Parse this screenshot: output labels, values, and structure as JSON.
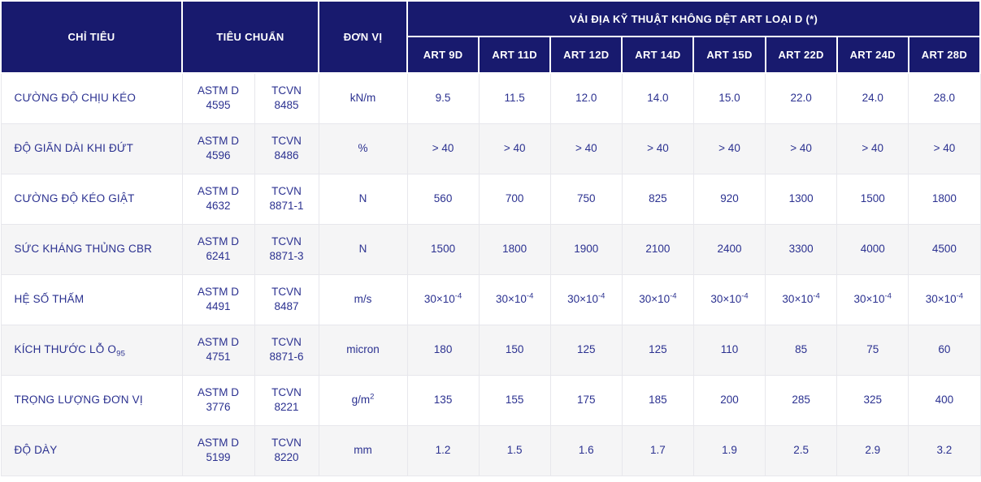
{
  "theme": {
    "header_bg": "#181a6e",
    "header_text": "#ffffff",
    "cell_text": "#2b3190",
    "stripe_bg": "#f5f5f6",
    "row_bg": "#ffffff",
    "border": "#e7e7ec",
    "page_bg": "#ffffff"
  },
  "table": {
    "header": {
      "col_chi_tieu": "CHỈ TIÊU",
      "col_tieu_chuan": "TIÊU CHUẨN",
      "col_don_vi": "ĐƠN VỊ",
      "group_title": "VẢI ĐỊA KỸ THUẬT KHÔNG DỆT ART LOẠI D (*)",
      "product_columns": [
        "ART 9D",
        "ART 11D",
        "ART 12D",
        "ART 14D",
        "ART 15D",
        "ART 22D",
        "ART 24D",
        "ART 28D"
      ]
    },
    "rows": [
      {
        "label": "CƯỜNG ĐỘ CHỊU KÉO",
        "astm": "ASTM D\n4595",
        "tcvn": "TCVN\n8485",
        "unit": "kN/m",
        "values": [
          "9.5",
          "11.5",
          "12.0",
          "14.0",
          "15.0",
          "22.0",
          "24.0",
          "28.0"
        ]
      },
      {
        "label": "ĐỘ GIÃN DÀI KHI ĐỨT",
        "astm": "ASTM D\n4596",
        "tcvn": "TCVN\n8486",
        "unit": "%",
        "values": [
          "> 40",
          "> 40",
          "> 40",
          "> 40",
          "> 40",
          "> 40",
          "> 40",
          "> 40"
        ]
      },
      {
        "label": "CƯỜNG ĐỘ KÉO GIẬT",
        "astm": "ASTM D\n4632",
        "tcvn": "TCVN\n8871-1",
        "unit": "N",
        "values": [
          "560",
          "700",
          "750",
          "825",
          "920",
          "1300",
          "1500",
          "1800"
        ]
      },
      {
        "label": "SỨC KHÁNG THỦNG CBR",
        "astm": "ASTM D\n6241",
        "tcvn": "TCVN\n8871-3",
        "unit": "N",
        "values": [
          "1500",
          "1800",
          "1900",
          "2100",
          "2400",
          "3300",
          "4000",
          "4500"
        ]
      },
      {
        "label": "HỆ SỐ THẤM",
        "astm": "ASTM D\n4491",
        "tcvn": "TCVN\n8487",
        "unit": "m/s",
        "values": [
          "30×10^-4^",
          "30×10^-4^",
          "30×10^-4^",
          "30×10^-4^",
          "30×10^-4^",
          "30×10^-4^",
          "30×10^-4^",
          "30×10^-4^"
        ]
      },
      {
        "label": "KÍCH THƯỚC LỖ O~95~",
        "astm": "ASTM D\n4751",
        "tcvn": "TCVN\n8871-6",
        "unit": "micron",
        "values": [
          "180",
          "150",
          "125",
          "125",
          "110",
          "85",
          "75",
          "60"
        ]
      },
      {
        "label": "TRỌNG LƯỢNG ĐƠN VỊ",
        "astm": "ASTM D\n3776",
        "tcvn": "TCVN\n8221",
        "unit": "g/m^2^",
        "values": [
          "135",
          "155",
          "175",
          "185",
          "200",
          "285",
          "325",
          "400"
        ]
      },
      {
        "label": "ĐỘ DÀY",
        "astm": "ASTM D\n5199",
        "tcvn": "TCVN\n8220",
        "unit": "mm",
        "values": [
          "1.2",
          "1.5",
          "1.6",
          "1.7",
          "1.9",
          "2.5",
          "2.9",
          "3.2"
        ]
      }
    ]
  }
}
